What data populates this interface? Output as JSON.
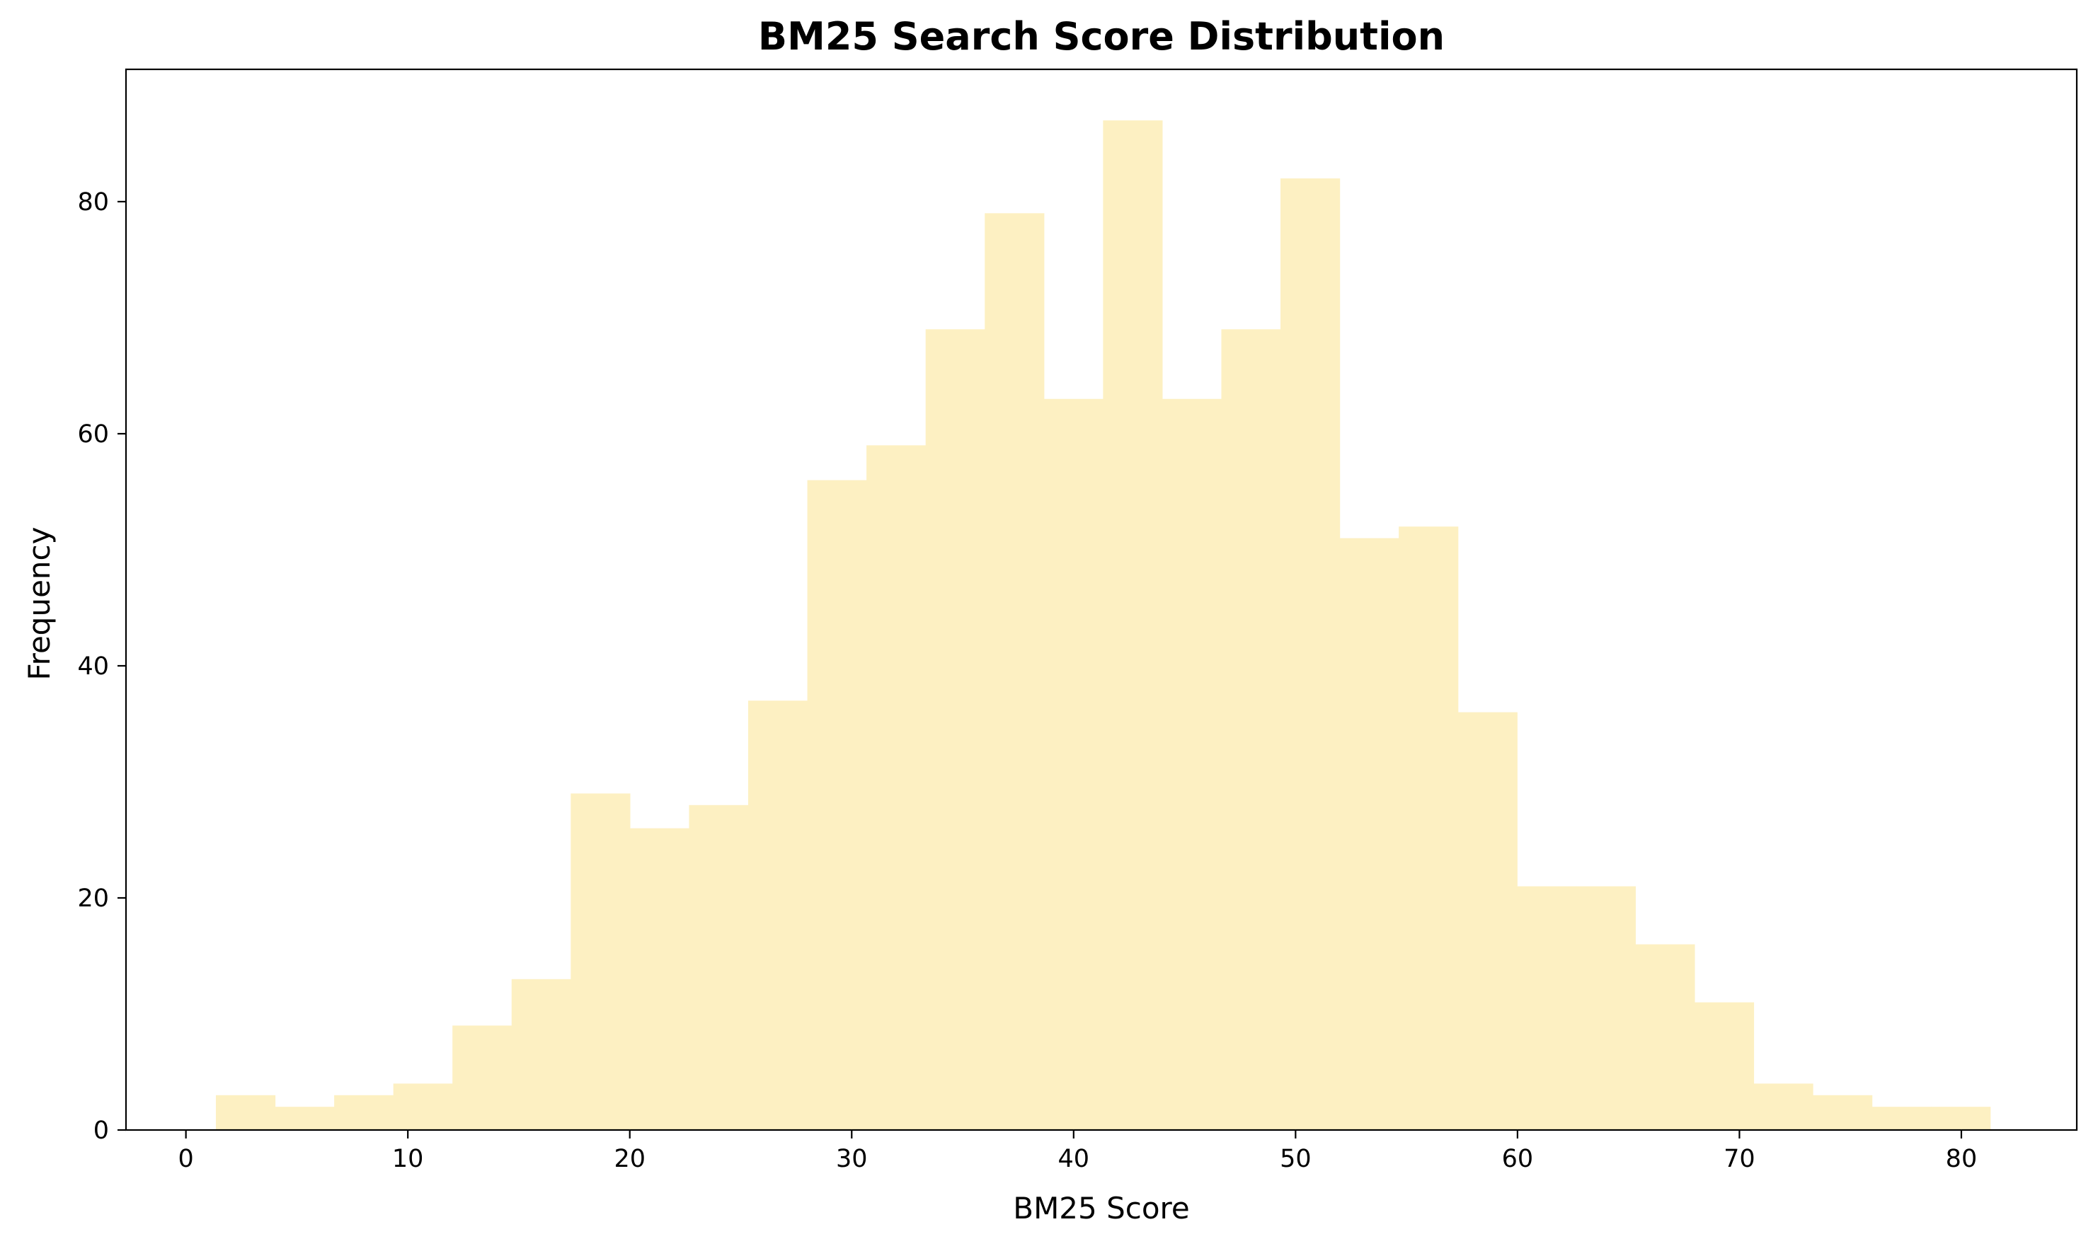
{
  "chart_data": {
    "type": "bar",
    "subtype": "histogram",
    "title": "BM25 Search Score Distribution",
    "xlabel": "BM25 Score",
    "ylabel": "Frequency",
    "xlim": [
      -2.7,
      85.2
    ],
    "ylim": [
      0,
      91.4
    ],
    "x_ticks": [
      0,
      10,
      20,
      30,
      40,
      50,
      60,
      70,
      80
    ],
    "y_ticks": [
      0,
      20,
      40,
      60,
      80
    ],
    "bin_start": 1.35,
    "bin_width": 2.665,
    "values": [
      3,
      2,
      3,
      4,
      9,
      13,
      29,
      26,
      28,
      37,
      56,
      59,
      69,
      79,
      63,
      87,
      63,
      69,
      82,
      51,
      52,
      36,
      21,
      21,
      16,
      11,
      4,
      3,
      2,
      2
    ],
    "grid": false,
    "legend": "none",
    "bar_color": "#fdf0c2",
    "axis_color": "#000000",
    "background": "#ffffff"
  }
}
